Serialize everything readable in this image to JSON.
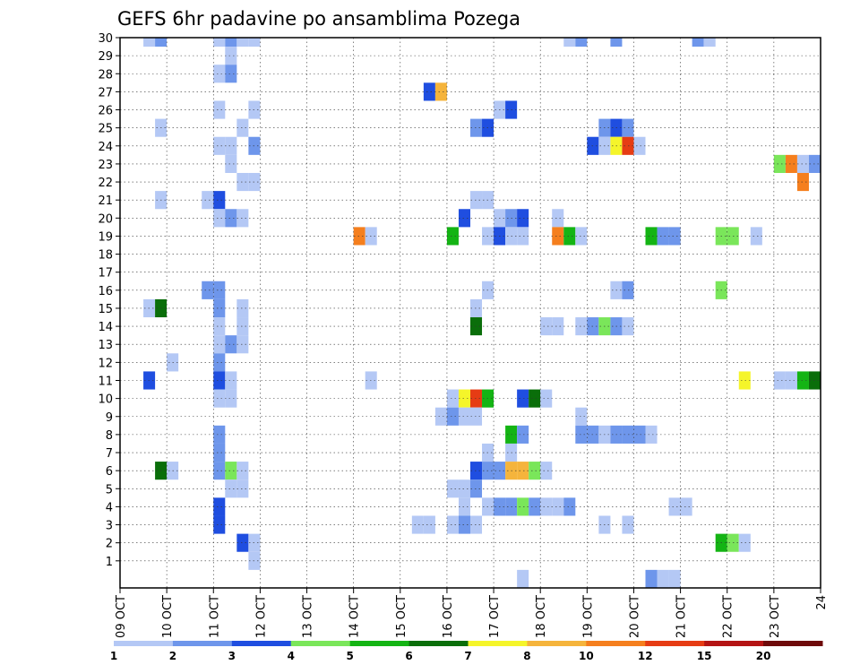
{
  "chart_data": {
    "type": "heatmap",
    "title": "GEFS 6hr padavine po ansamblima Pozega",
    "xlabel": "",
    "ylabel": "",
    "x_tick_labels": [
      "09 OCT",
      "10 OCT",
      "11 OCT",
      "12 OCT",
      "13 OCT",
      "14 OCT",
      "15 OCT",
      "16 OCT",
      "17 OCT",
      "18 OCT",
      "19 OCT",
      "20 OCT",
      "21 OCT",
      "22 OCT",
      "23 OCT",
      "24"
    ],
    "y_tick_labels": [
      "1",
      "2",
      "3",
      "4",
      "5",
      "6",
      "7",
      "8",
      "9",
      "10",
      "11",
      "12",
      "13",
      "14",
      "15",
      "16",
      "17",
      "18",
      "19",
      "20",
      "21",
      "22",
      "23",
      "24",
      "25",
      "26",
      "27",
      "28",
      "29",
      "30"
    ],
    "xlim_days": [
      0,
      15
    ],
    "ylim": [
      0,
      30
    ],
    "time_step_hours": 6,
    "grid": "dotted",
    "levels": [
      1,
      2,
      3,
      4,
      5,
      6,
      7,
      8,
      10,
      12,
      15,
      20
    ],
    "colors": [
      "#b4c8f5",
      "#6e96eb",
      "#1f4ee0",
      "#7ae65a",
      "#14b414",
      "#0a6e0a",
      "#f5f52a",
      "#f5b43c",
      "#f57f1e",
      "#e63c14",
      "#b41414",
      "#6e0a0a"
    ],
    "cells": [
      {
        "member": 30,
        "t": 0.5,
        "c": 1
      },
      {
        "member": 30,
        "t": 0.75,
        "c": 2
      },
      {
        "member": 30,
        "t": 2.0,
        "c": 1
      },
      {
        "member": 30,
        "t": 2.25,
        "c": 2
      },
      {
        "member": 30,
        "t": 2.5,
        "c": 1
      },
      {
        "member": 30,
        "t": 2.75,
        "c": 1
      },
      {
        "member": 30,
        "t": 9.5,
        "c": 1
      },
      {
        "member": 30,
        "t": 9.75,
        "c": 2
      },
      {
        "member": 30,
        "t": 10.5,
        "c": 2
      },
      {
        "member": 30,
        "t": 12.25,
        "c": 2
      },
      {
        "member": 30,
        "t": 12.5,
        "c": 1
      },
      {
        "member": 29,
        "t": 2.25,
        "c": 1
      },
      {
        "member": 28,
        "t": 2.0,
        "c": 1
      },
      {
        "member": 28,
        "t": 2.25,
        "c": 2
      },
      {
        "member": 27,
        "t": 6.5,
        "c": 3
      },
      {
        "member": 27,
        "t": 6.75,
        "c": 8
      },
      {
        "member": 26,
        "t": 2.0,
        "c": 1
      },
      {
        "member": 26,
        "t": 2.75,
        "c": 1
      },
      {
        "member": 26,
        "t": 8.0,
        "c": 1
      },
      {
        "member": 26,
        "t": 8.25,
        "c": 3
      },
      {
        "member": 25,
        "t": 0.75,
        "c": 1
      },
      {
        "member": 25,
        "t": 2.5,
        "c": 1
      },
      {
        "member": 25,
        "t": 7.5,
        "c": 2
      },
      {
        "member": 25,
        "t": 7.75,
        "c": 3
      },
      {
        "member": 25,
        "t": 10.25,
        "c": 2
      },
      {
        "member": 25,
        "t": 10.5,
        "c": 3
      },
      {
        "member": 25,
        "t": 10.75,
        "c": 2
      },
      {
        "member": 24,
        "t": 2.0,
        "c": 1
      },
      {
        "member": 24,
        "t": 2.25,
        "c": 1
      },
      {
        "member": 24,
        "t": 2.75,
        "c": 2
      },
      {
        "member": 24,
        "t": 10.0,
        "c": 3
      },
      {
        "member": 24,
        "t": 10.25,
        "c": 1
      },
      {
        "member": 24,
        "t": 10.5,
        "c": 7
      },
      {
        "member": 24,
        "t": 10.75,
        "c": 10
      },
      {
        "member": 24,
        "t": 11.0,
        "c": 1
      },
      {
        "member": 23,
        "t": 2.25,
        "c": 1
      },
      {
        "member": 23,
        "t": 14.0,
        "c": 4
      },
      {
        "member": 23,
        "t": 14.25,
        "c": 9
      },
      {
        "member": 23,
        "t": 14.5,
        "c": 1
      },
      {
        "member": 23,
        "t": 14.75,
        "c": 2
      },
      {
        "member": 22,
        "t": 2.5,
        "c": 1
      },
      {
        "member": 22,
        "t": 2.75,
        "c": 1
      },
      {
        "member": 22,
        "t": 14.5,
        "c": 9
      },
      {
        "member": 21,
        "t": 0.75,
        "c": 1
      },
      {
        "member": 21,
        "t": 1.75,
        "c": 1
      },
      {
        "member": 21,
        "t": 2.0,
        "c": 3
      },
      {
        "member": 21,
        "t": 7.5,
        "c": 1
      },
      {
        "member": 21,
        "t": 7.75,
        "c": 1
      },
      {
        "member": 20,
        "t": 2.0,
        "c": 1
      },
      {
        "member": 20,
        "t": 2.25,
        "c": 2
      },
      {
        "member": 20,
        "t": 2.5,
        "c": 1
      },
      {
        "member": 20,
        "t": 7.25,
        "c": 3
      },
      {
        "member": 20,
        "t": 8.0,
        "c": 1
      },
      {
        "member": 20,
        "t": 8.25,
        "c": 2
      },
      {
        "member": 20,
        "t": 8.5,
        "c": 3
      },
      {
        "member": 20,
        "t": 9.25,
        "c": 1
      },
      {
        "member": 19,
        "t": 5.0,
        "c": 9
      },
      {
        "member": 19,
        "t": 5.25,
        "c": 1
      },
      {
        "member": 19,
        "t": 7.0,
        "c": 5
      },
      {
        "member": 19,
        "t": 7.75,
        "c": 1
      },
      {
        "member": 19,
        "t": 8.0,
        "c": 3
      },
      {
        "member": 19,
        "t": 8.25,
        "c": 1
      },
      {
        "member": 19,
        "t": 8.5,
        "c": 1
      },
      {
        "member": 19,
        "t": 9.25,
        "c": 9
      },
      {
        "member": 19,
        "t": 9.5,
        "c": 5
      },
      {
        "member": 19,
        "t": 9.75,
        "c": 1
      },
      {
        "member": 19,
        "t": 11.25,
        "c": 5
      },
      {
        "member": 19,
        "t": 11.5,
        "c": 2
      },
      {
        "member": 19,
        "t": 11.75,
        "c": 2
      },
      {
        "member": 19,
        "t": 12.75,
        "c": 4
      },
      {
        "member": 19,
        "t": 13.0,
        "c": 4
      },
      {
        "member": 19,
        "t": 13.5,
        "c": 1
      },
      {
        "member": 16,
        "t": 1.75,
        "c": 2
      },
      {
        "member": 16,
        "t": 2.0,
        "c": 2
      },
      {
        "member": 16,
        "t": 7.75,
        "c": 1
      },
      {
        "member": 16,
        "t": 10.5,
        "c": 1
      },
      {
        "member": 16,
        "t": 10.75,
        "c": 2
      },
      {
        "member": 16,
        "t": 12.75,
        "c": 4
      },
      {
        "member": 15,
        "t": 0.5,
        "c": 1
      },
      {
        "member": 15,
        "t": 0.75,
        "c": 6
      },
      {
        "member": 15,
        "t": 2.0,
        "c": 2
      },
      {
        "member": 15,
        "t": 2.5,
        "c": 1
      },
      {
        "member": 15,
        "t": 7.5,
        "c": 1
      },
      {
        "member": 14,
        "t": 2.0,
        "c": 1
      },
      {
        "member": 14,
        "t": 2.5,
        "c": 1
      },
      {
        "member": 14,
        "t": 7.5,
        "c": 6
      },
      {
        "member": 14,
        "t": 9.0,
        "c": 1
      },
      {
        "member": 14,
        "t": 9.25,
        "c": 1
      },
      {
        "member": 14,
        "t": 9.75,
        "c": 1
      },
      {
        "member": 14,
        "t": 10.0,
        "c": 2
      },
      {
        "member": 14,
        "t": 10.25,
        "c": 4
      },
      {
        "member": 14,
        "t": 10.5,
        "c": 2
      },
      {
        "member": 14,
        "t": 10.75,
        "c": 1
      },
      {
        "member": 13,
        "t": 2.0,
        "c": 1
      },
      {
        "member": 13,
        "t": 2.25,
        "c": 2
      },
      {
        "member": 13,
        "t": 2.5,
        "c": 1
      },
      {
        "member": 12,
        "t": 1.0,
        "c": 1
      },
      {
        "member": 12,
        "t": 2.0,
        "c": 2
      },
      {
        "member": 11,
        "t": 0.5,
        "c": 3
      },
      {
        "member": 11,
        "t": 2.0,
        "c": 3
      },
      {
        "member": 11,
        "t": 2.25,
        "c": 1
      },
      {
        "member": 11,
        "t": 5.25,
        "c": 1
      },
      {
        "member": 11,
        "t": 13.25,
        "c": 7
      },
      {
        "member": 11,
        "t": 14.0,
        "c": 1
      },
      {
        "member": 11,
        "t": 14.25,
        "c": 1
      },
      {
        "member": 11,
        "t": 14.5,
        "c": 5
      },
      {
        "member": 11,
        "t": 14.75,
        "c": 6
      },
      {
        "member": 10,
        "t": 2.0,
        "c": 1
      },
      {
        "member": 10,
        "t": 2.25,
        "c": 1
      },
      {
        "member": 10,
        "t": 7.0,
        "c": 1
      },
      {
        "member": 10,
        "t": 7.25,
        "c": 7
      },
      {
        "member": 10,
        "t": 7.5,
        "c": 10
      },
      {
        "member": 10,
        "t": 7.75,
        "c": 5
      },
      {
        "member": 10,
        "t": 8.5,
        "c": 3
      },
      {
        "member": 10,
        "t": 8.75,
        "c": 6
      },
      {
        "member": 10,
        "t": 9.0,
        "c": 1
      },
      {
        "member": 9,
        "t": 6.75,
        "c": 1
      },
      {
        "member": 9,
        "t": 7.0,
        "c": 2
      },
      {
        "member": 9,
        "t": 7.25,
        "c": 1
      },
      {
        "member": 9,
        "t": 7.5,
        "c": 1
      },
      {
        "member": 9,
        "t": 9.75,
        "c": 1
      },
      {
        "member": 8,
        "t": 2.0,
        "c": 2
      },
      {
        "member": 8,
        "t": 8.25,
        "c": 5
      },
      {
        "member": 8,
        "t": 8.5,
        "c": 2
      },
      {
        "member": 8,
        "t": 9.75,
        "c": 2
      },
      {
        "member": 8,
        "t": 10.0,
        "c": 2
      },
      {
        "member": 8,
        "t": 10.25,
        "c": 1
      },
      {
        "member": 8,
        "t": 10.5,
        "c": 2
      },
      {
        "member": 8,
        "t": 10.75,
        "c": 2
      },
      {
        "member": 8,
        "t": 11.0,
        "c": 2
      },
      {
        "member": 8,
        "t": 11.25,
        "c": 1
      },
      {
        "member": 7,
        "t": 2.0,
        "c": 2
      },
      {
        "member": 7,
        "t": 7.75,
        "c": 1
      },
      {
        "member": 7,
        "t": 8.25,
        "c": 1
      },
      {
        "member": 6,
        "t": 0.75,
        "c": 6
      },
      {
        "member": 6,
        "t": 1.0,
        "c": 1
      },
      {
        "member": 6,
        "t": 2.0,
        "c": 2
      },
      {
        "member": 6,
        "t": 2.25,
        "c": 4
      },
      {
        "member": 6,
        "t": 2.5,
        "c": 1
      },
      {
        "member": 6,
        "t": 7.5,
        "c": 3
      },
      {
        "member": 6,
        "t": 7.75,
        "c": 2
      },
      {
        "member": 6,
        "t": 8.0,
        "c": 2
      },
      {
        "member": 6,
        "t": 8.25,
        "c": 8
      },
      {
        "member": 6,
        "t": 8.5,
        "c": 8
      },
      {
        "member": 6,
        "t": 8.75,
        "c": 4
      },
      {
        "member": 6,
        "t": 9.0,
        "c": 1
      },
      {
        "member": 5,
        "t": 2.25,
        "c": 1
      },
      {
        "member": 5,
        "t": 2.5,
        "c": 1
      },
      {
        "member": 5,
        "t": 7.0,
        "c": 1
      },
      {
        "member": 5,
        "t": 7.25,
        "c": 1
      },
      {
        "member": 5,
        "t": 7.5,
        "c": 2
      },
      {
        "member": 4,
        "t": 2.0,
        "c": 3
      },
      {
        "member": 4,
        "t": 7.25,
        "c": 1
      },
      {
        "member": 4,
        "t": 7.75,
        "c": 1
      },
      {
        "member": 4,
        "t": 8.0,
        "c": 2
      },
      {
        "member": 4,
        "t": 8.25,
        "c": 2
      },
      {
        "member": 4,
        "t": 8.5,
        "c": 4
      },
      {
        "member": 4,
        "t": 8.75,
        "c": 2
      },
      {
        "member": 4,
        "t": 9.0,
        "c": 1
      },
      {
        "member": 4,
        "t": 9.25,
        "c": 1
      },
      {
        "member": 4,
        "t": 9.5,
        "c": 2
      },
      {
        "member": 4,
        "t": 11.75,
        "c": 1
      },
      {
        "member": 4,
        "t": 12.0,
        "c": 1
      },
      {
        "member": 3,
        "t": 2.0,
        "c": 3
      },
      {
        "member": 3,
        "t": 6.25,
        "c": 1
      },
      {
        "member": 3,
        "t": 6.5,
        "c": 1
      },
      {
        "member": 3,
        "t": 7.0,
        "c": 1
      },
      {
        "member": 3,
        "t": 7.25,
        "c": 2
      },
      {
        "member": 3,
        "t": 7.5,
        "c": 1
      },
      {
        "member": 3,
        "t": 10.25,
        "c": 1
      },
      {
        "member": 3,
        "t": 10.75,
        "c": 1
      },
      {
        "member": 2,
        "t": 2.5,
        "c": 3
      },
      {
        "member": 2,
        "t": 2.75,
        "c": 1
      },
      {
        "member": 2,
        "t": 12.75,
        "c": 5
      },
      {
        "member": 2,
        "t": 13.0,
        "c": 4
      },
      {
        "member": 2,
        "t": 13.25,
        "c": 1
      },
      {
        "member": 1,
        "t": 2.75,
        "c": 1
      },
      {
        "member": 0,
        "t": 8.5,
        "c": 1
      },
      {
        "member": 0,
        "t": 11.25,
        "c": 2
      },
      {
        "member": 0,
        "t": 11.5,
        "c": 1
      },
      {
        "member": 0,
        "t": 11.75,
        "c": 1
      }
    ]
  }
}
